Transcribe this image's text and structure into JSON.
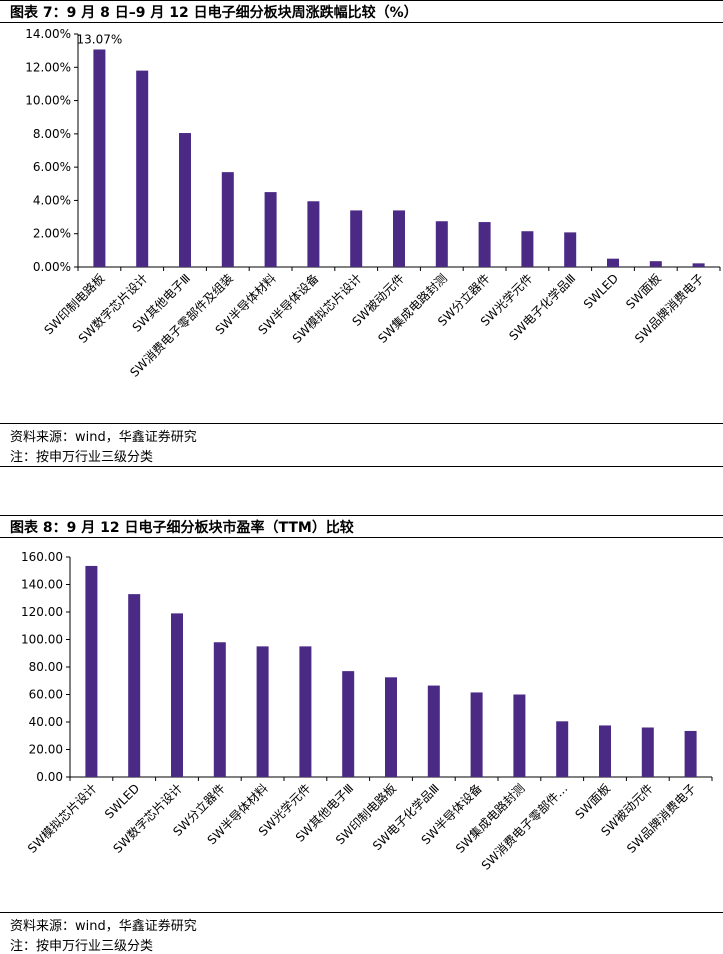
{
  "colors": {
    "bar": "#4b2a86",
    "axis": "#000000"
  },
  "chart1": {
    "title": "图表 7：9 月 8 日–9 月 12 日电子细分板块周涨跌幅比较（%）",
    "source": "资料来源：wind，华鑫证券研究",
    "note": "注：按申万行业三级分类"
  },
  "chart2": {
    "title": "图表 8：9 月 12 日电子细分板块市盈率（TTM）比较",
    "source": "资料来源：wind，华鑫证券研究",
    "note": "注：按申万行业三级分类"
  },
  "chart_data": [
    {
      "type": "bar",
      "title": "图表 7：9 月 8 日–9 月 12 日电子细分板块周涨跌幅比较（%）",
      "categories": [
        "SW印制电路板",
        "SW数字芯片设计",
        "SW其他电子Ⅲ",
        "SW消费电子零部件及组装",
        "SW半导体材料",
        "SW半导体设备",
        "SW模拟芯片设计",
        "SW被动元件",
        "SW集成电路封测",
        "SW分立器件",
        "SW光学元件",
        "SW电子化学品Ⅲ",
        "SWLED",
        "SW面板",
        "SW品牌消费电子"
      ],
      "values": [
        13.07,
        11.8,
        8.05,
        5.7,
        4.5,
        3.95,
        3.4,
        3.4,
        2.75,
        2.7,
        2.15,
        2.08,
        0.5,
        0.35,
        0.22
      ],
      "ylim": [
        0,
        14
      ],
      "yticks": [
        "0.00%",
        "2.00%",
        "4.00%",
        "6.00%",
        "8.00%",
        "10.00%",
        "12.00%",
        "14.00%"
      ],
      "data_labels": [
        "13.07%"
      ],
      "xlabel": "",
      "ylabel": "",
      "grid": false
    },
    {
      "type": "bar",
      "title": "图表 8：9 月 12 日电子细分板块市盈率（TTM）比较",
      "categories": [
        "SW模拟芯片设计",
        "SWLED",
        "SW数字芯片设计",
        "SW分立器件",
        "SW半导体材料",
        "SW光学元件",
        "SW其他电子Ⅲ",
        "SW印制电路板",
        "SW电子化学品Ⅲ",
        "SW半导体设备",
        "SW集成电路封测",
        "SW消费电子零部件…",
        "SW面板",
        "SW被动元件",
        "SW品牌消费电子"
      ],
      "values": [
        153.5,
        133,
        119,
        98,
        95,
        95,
        77,
        72.5,
        66.5,
        61.5,
        60,
        40.5,
        37.5,
        36,
        33.5
      ],
      "ylim": [
        0,
        160
      ],
      "yticks": [
        "0.00",
        "20.00",
        "40.00",
        "60.00",
        "80.00",
        "100.00",
        "120.00",
        "140.00",
        "160.00"
      ],
      "xlabel": "",
      "ylabel": "",
      "grid": false
    }
  ]
}
